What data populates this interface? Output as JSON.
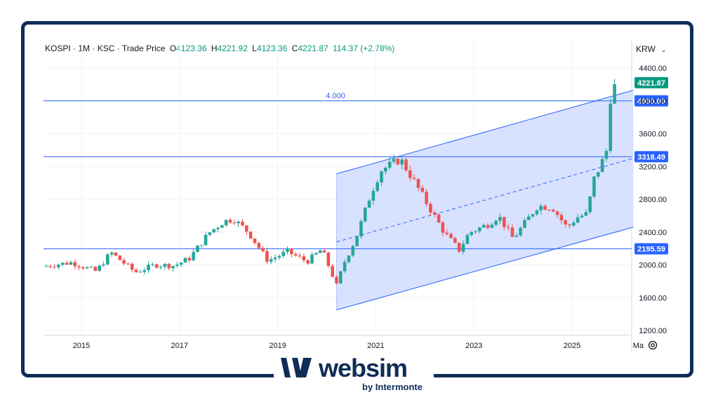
{
  "header": {
    "symbol": "KOSPI",
    "interval": "1M",
    "exchange": "KSC",
    "price_type": "Trade Price",
    "open_label": "O",
    "open": "4123.36",
    "high_label": "H",
    "high": "4221.92",
    "low_label": "L",
    "low": "4123.36",
    "close_label": "C",
    "close": "4221.87",
    "change": "114.37 (+2.78%)",
    "currency": "KRW"
  },
  "brand": {
    "name": "websim",
    "tagline": "by Intermonte",
    "color": "#0f2d57"
  },
  "colors": {
    "up": "#26a69a",
    "down": "#ef5350",
    "line": "#2962ff",
    "channel_fill": "#d6e0ff"
  },
  "chart_data": {
    "type": "candlestick",
    "y_ticks": [
      "4400.00",
      "4000.00",
      "3600.00",
      "3200.00",
      "2800.00",
      "2400.00",
      "2000.00",
      "1600.00",
      "1200.00"
    ],
    "ylim": [
      1200,
      4400
    ],
    "x_ticks": [
      "2015",
      "2017",
      "2019",
      "2021",
      "2023",
      "2025",
      "Ma"
    ],
    "xlim": [
      2014.2,
      2026.45
    ],
    "horizontal_lines": [
      {
        "value": 4000,
        "label": "4000.00",
        "annotation": "4.000"
      },
      {
        "value": 3318.49,
        "label": "3318.49"
      },
      {
        "value": 2195.59,
        "label": "2195.59"
      }
    ],
    "last_price": {
      "value": 4221.87,
      "label": "4221.87"
    },
    "channel": {
      "upper": [
        [
          2020.2,
          3110
        ],
        [
          2026.25,
          4130
        ]
      ],
      "middle": [
        [
          2020.2,
          2280
        ],
        [
          2026.25,
          3300
        ]
      ],
      "lower": [
        [
          2020.2,
          1450
        ],
        [
          2026.25,
          2460
        ]
      ]
    },
    "anchors": [
      [
        2014.2,
        1980
      ],
      [
        2014.8,
        2030
      ],
      [
        2015.3,
        1920
      ],
      [
        2015.6,
        2150
      ],
      [
        2016.1,
        1910
      ],
      [
        2016.5,
        2000
      ],
      [
        2016.9,
        1990
      ],
      [
        2017.2,
        2080
      ],
      [
        2017.6,
        2390
      ],
      [
        2017.9,
        2530
      ],
      [
        2018.1,
        2560
      ],
      [
        2018.4,
        2400
      ],
      [
        2018.8,
        2050
      ],
      [
        2019.2,
        2160
      ],
      [
        2019.6,
        2040
      ],
      [
        2019.9,
        2190
      ],
      [
        2020.2,
        1750
      ],
      [
        2020.35,
        2020
      ],
      [
        2020.6,
        2330
      ],
      [
        2020.9,
        2870
      ],
      [
        2021.1,
        3150
      ],
      [
        2021.5,
        3290
      ],
      [
        2021.8,
        3000
      ],
      [
        2022.1,
        2690
      ],
      [
        2022.4,
        2390
      ],
      [
        2022.7,
        2180
      ],
      [
        2022.9,
        2390
      ],
      [
        2023.3,
        2500
      ],
      [
        2023.5,
        2600
      ],
      [
        2023.8,
        2320
      ],
      [
        2024.0,
        2480
      ],
      [
        2024.3,
        2720
      ],
      [
        2024.6,
        2700
      ],
      [
        2024.9,
        2450
      ],
      [
        2025.1,
        2580
      ],
      [
        2025.3,
        2620
      ],
      [
        2025.45,
        3050
      ],
      [
        2025.6,
        3240
      ],
      [
        2025.72,
        3420
      ],
      [
        2025.8,
        4110
      ],
      [
        2025.88,
        4221.87
      ]
    ]
  }
}
